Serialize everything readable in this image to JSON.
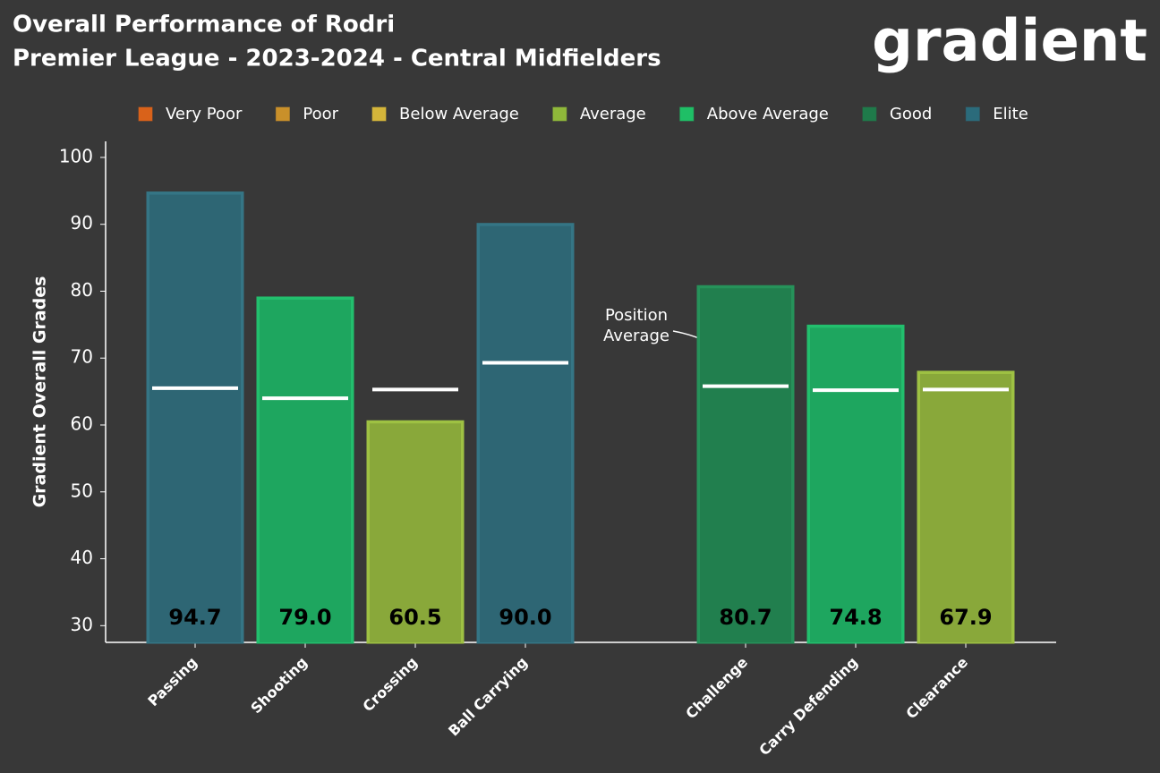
{
  "chart_data": {
    "type": "bar",
    "title": "Overall Performance of Rodri",
    "subtitle": "Premier League - 2023-2024 - Central Midfielders",
    "logo": "gradient",
    "y_label": "Gradient Overall Grades",
    "legend": [
      {
        "name": "Very Poor",
        "color": "#d9621a"
      },
      {
        "name": "Poor",
        "color": "#c9902a"
      },
      {
        "name": "Below Average",
        "color": "#d4b53a"
      },
      {
        "name": "Average",
        "color": "#8fb83a"
      },
      {
        "name": "Above Average",
        "color": "#1fbf66"
      },
      {
        "name": "Good",
        "color": "#1f7a4a"
      },
      {
        "name": "Elite",
        "color": "#2b6b7b"
      }
    ],
    "categories": [
      "Passing",
      "Shooting",
      "Crossing",
      "Ball Carrying",
      null,
      "Challenge",
      "Carry Defending",
      "Clearance"
    ],
    "series": [
      {
        "name": "Grade",
        "values": [
          94.7,
          79.0,
          60.5,
          90.0,
          null,
          80.7,
          74.8,
          67.9
        ],
        "colors": [
          "#2e6674",
          "#1ea65f",
          "#89a83a",
          "#2e6674",
          null,
          "#217f4e",
          "#1ea65f",
          "#89a83a"
        ],
        "value_labels": [
          "94.7",
          "79.0",
          "60.5",
          "90.0",
          null,
          "80.7",
          "74.8",
          "67.9"
        ]
      },
      {
        "name": "Position Average",
        "values": [
          65.5,
          64.0,
          65.3,
          69.3,
          null,
          65.8,
          65.2,
          65.3
        ],
        "color": "#ffffff"
      }
    ],
    "annotation": [
      "Position",
      "Average"
    ],
    "ylim": [
      27.5,
      102.4
    ],
    "yticks": [
      30,
      40,
      50,
      60,
      70,
      80,
      90,
      100
    ]
  }
}
